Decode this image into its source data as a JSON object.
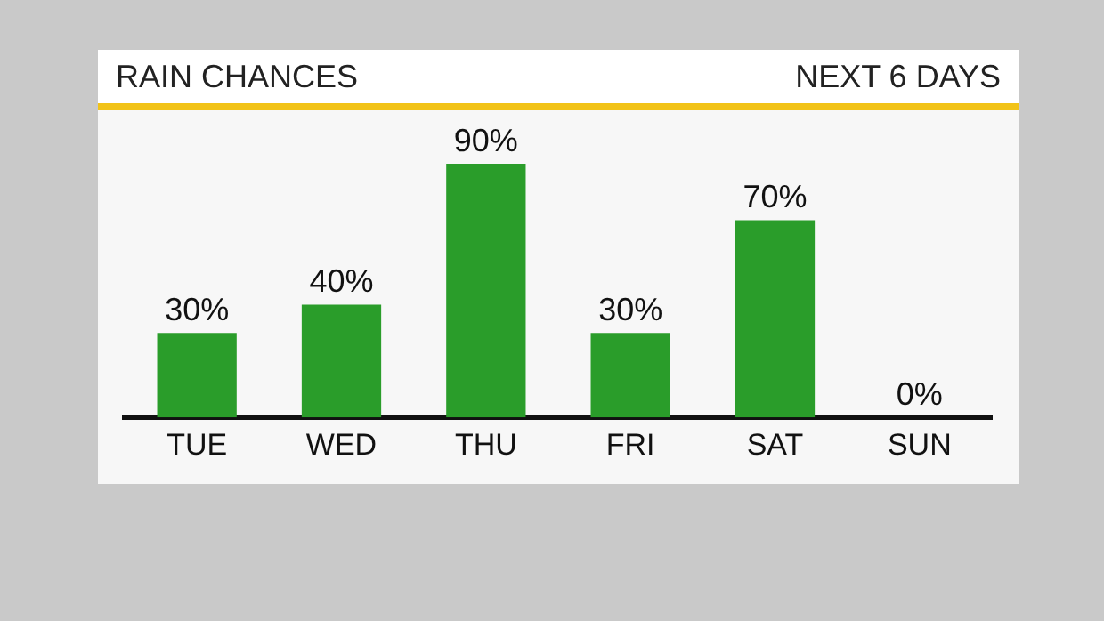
{
  "chart_data": {
    "type": "bar",
    "title": "RAIN CHANCES",
    "subtitle": "NEXT 6 DAYS",
    "categories": [
      "TUE",
      "WED",
      "THU",
      "FRI",
      "SAT",
      "SUN"
    ],
    "values": [
      30,
      40,
      90,
      30,
      70,
      0
    ],
    "value_labels": [
      "30%",
      "40%",
      "90%",
      "30%",
      "70%",
      "0%"
    ],
    "color": "#2a9d2a",
    "grid": false,
    "legend": false
  }
}
